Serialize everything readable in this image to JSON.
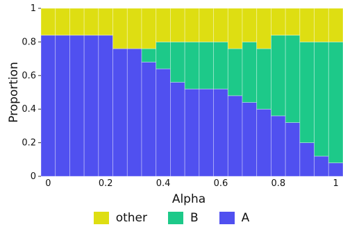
{
  "chart_data": {
    "type": "bar",
    "stacked": true,
    "normalized": true,
    "xlabel": "Alpha",
    "ylabel": "Proportion",
    "xlim": [
      0,
      1
    ],
    "ylim": [
      0,
      1
    ],
    "x_ticks": [
      "0",
      "0.2",
      "0.4",
      "0.6",
      "0.8",
      "1"
    ],
    "y_ticks": [
      "0",
      "0.2",
      "0.4",
      "0.6",
      "0.8",
      "1"
    ],
    "x": [
      0.0,
      0.05,
      0.1,
      0.15,
      0.2,
      0.25,
      0.3,
      0.35,
      0.4,
      0.45,
      0.5,
      0.55,
      0.6,
      0.65,
      0.7,
      0.75,
      0.8,
      0.85,
      0.9,
      0.95,
      1.0
    ],
    "series": [
      {
        "name": "A",
        "color": "#5050f0",
        "values": [
          0.84,
          0.84,
          0.84,
          0.84,
          0.84,
          0.76,
          0.76,
          0.68,
          0.64,
          0.56,
          0.52,
          0.52,
          0.52,
          0.48,
          0.44,
          0.4,
          0.36,
          0.32,
          0.2,
          0.12,
          0.08
        ]
      },
      {
        "name": "B",
        "color": "#1dc989",
        "values": [
          0.0,
          0.0,
          0.0,
          0.0,
          0.0,
          0.0,
          0.0,
          0.08,
          0.16,
          0.24,
          0.28,
          0.28,
          0.28,
          0.28,
          0.36,
          0.36,
          0.48,
          0.52,
          0.6,
          0.68,
          0.72
        ]
      },
      {
        "name": "other",
        "color": "#dede12",
        "values": [
          0.16,
          0.16,
          0.16,
          0.16,
          0.16,
          0.24,
          0.24,
          0.24,
          0.2,
          0.2,
          0.2,
          0.2,
          0.2,
          0.24,
          0.2,
          0.24,
          0.16,
          0.16,
          0.2,
          0.2,
          0.2
        ]
      }
    ],
    "legend_order": [
      "other",
      "B",
      "A"
    ],
    "legend_position": "bottom-center",
    "grid": false
  }
}
